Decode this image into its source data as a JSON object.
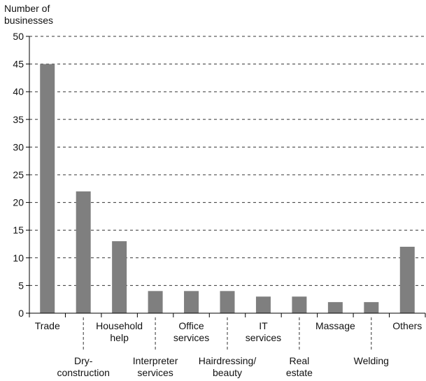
{
  "chart_data": {
    "type": "bar",
    "ylabel_lines": [
      "Number of",
      "businesses"
    ],
    "xlabel": "",
    "title": "",
    "ylim": [
      0,
      50
    ],
    "yticks": [
      0,
      5,
      10,
      15,
      20,
      25,
      30,
      35,
      40,
      45,
      50
    ],
    "grid": "horizontal dashed",
    "legend": "none",
    "bar_color": "#7f7f7f",
    "categories": [
      {
        "lines": [
          "Trade"
        ],
        "row": "upper"
      },
      {
        "lines": [
          "Dry-",
          "construction"
        ],
        "row": "lower"
      },
      {
        "lines": [
          "Household",
          "help"
        ],
        "row": "upper"
      },
      {
        "lines": [
          "Interpreter",
          "services"
        ],
        "row": "lower"
      },
      {
        "lines": [
          "Office",
          "services"
        ],
        "row": "upper"
      },
      {
        "lines": [
          "Hairdressing/",
          "beauty"
        ],
        "row": "lower"
      },
      {
        "lines": [
          "IT",
          "services"
        ],
        "row": "upper"
      },
      {
        "lines": [
          "Real",
          "estate"
        ],
        "row": "lower"
      },
      {
        "lines": [
          "Massage"
        ],
        "row": "upper"
      },
      {
        "lines": [
          "Welding"
        ],
        "row": "lower"
      },
      {
        "lines": [
          "Others"
        ],
        "row": "upper"
      }
    ],
    "values": [
      45,
      22,
      13,
      4,
      4,
      4,
      3,
      3,
      2,
      2,
      12
    ]
  }
}
